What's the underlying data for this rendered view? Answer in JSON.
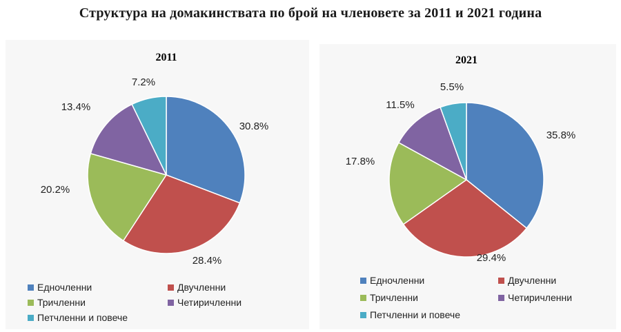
{
  "title": "Структура на домакинствата по брой на членовете за 2011 и 2021 година",
  "chart_data": [
    {
      "type": "pie",
      "title": "2011",
      "categories": [
        "Едночленни",
        "Двучленни",
        "Тричленни",
        "Четиричленни",
        "Петчленни и повече"
      ],
      "values": [
        30.8,
        28.4,
        20.2,
        13.4,
        7.2
      ],
      "value_labels": [
        "30.8%",
        "28.4%",
        "20.2%",
        "13.4%",
        "7.2%"
      ],
      "colors": [
        "#4f81bd",
        "#c0504d",
        "#9bbb59",
        "#8064a2",
        "#4bacc6"
      ],
      "legend_position": "bottom"
    },
    {
      "type": "pie",
      "title": "2021",
      "categories": [
        "Едночленни",
        "Двучленни",
        "Тричленни",
        "Четиричленни",
        "Петчленни и повече"
      ],
      "values": [
        35.8,
        29.4,
        17.8,
        11.5,
        5.5
      ],
      "value_labels": [
        "35.8%",
        "29.4%",
        "17.8%",
        "11.5%",
        "5.5%"
      ],
      "colors": [
        "#4f81bd",
        "#c0504d",
        "#9bbb59",
        "#8064a2",
        "#4bacc6"
      ],
      "legend_position": "bottom"
    }
  ]
}
